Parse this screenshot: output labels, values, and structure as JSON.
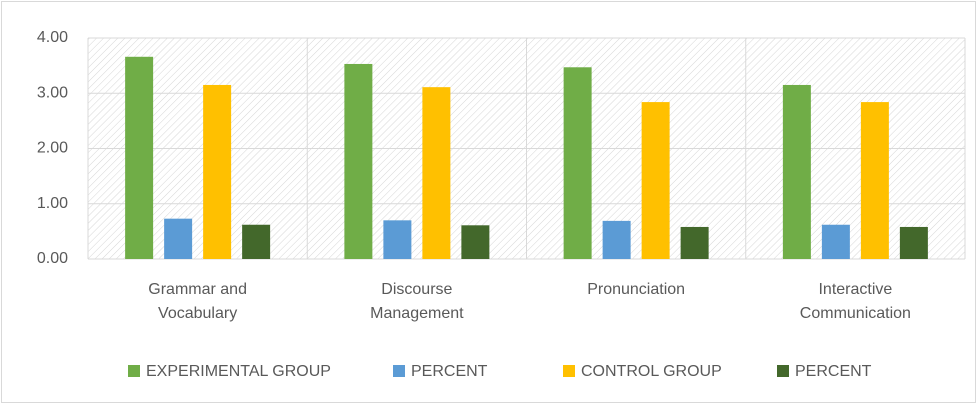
{
  "chart_data": {
    "type": "bar",
    "categories": [
      [
        "Grammar and",
        "Vocabulary"
      ],
      [
        "Discourse",
        "Management"
      ],
      [
        "Pronunciation"
      ],
      [
        "Interactive",
        "Communication"
      ]
    ],
    "series": [
      {
        "name": "EXPERIMENTAL GROUP",
        "color": "#70ad47",
        "values": [
          3.66,
          3.53,
          3.47,
          3.15
        ]
      },
      {
        "name": "PERCENT",
        "color": "#5b9bd5",
        "values": [
          0.73,
          0.7,
          0.69,
          0.62
        ]
      },
      {
        "name": "CONTROL GROUP",
        "color": "#ffc000",
        "values": [
          3.15,
          3.11,
          2.84,
          2.84
        ]
      },
      {
        "name": "PERCENT",
        "color": "#43682b",
        "values": [
          0.62,
          0.61,
          0.58,
          0.58
        ]
      }
    ],
    "ylim": [
      0,
      4
    ],
    "yticks": [
      {
        "value": 0,
        "label": "0.00"
      },
      {
        "value": 1,
        "label": "1.00"
      },
      {
        "value": 2,
        "label": "2.00"
      },
      {
        "value": 3,
        "label": "3.00"
      },
      {
        "value": 4,
        "label": "4.00"
      }
    ],
    "grid": true,
    "legend": "bottom"
  }
}
